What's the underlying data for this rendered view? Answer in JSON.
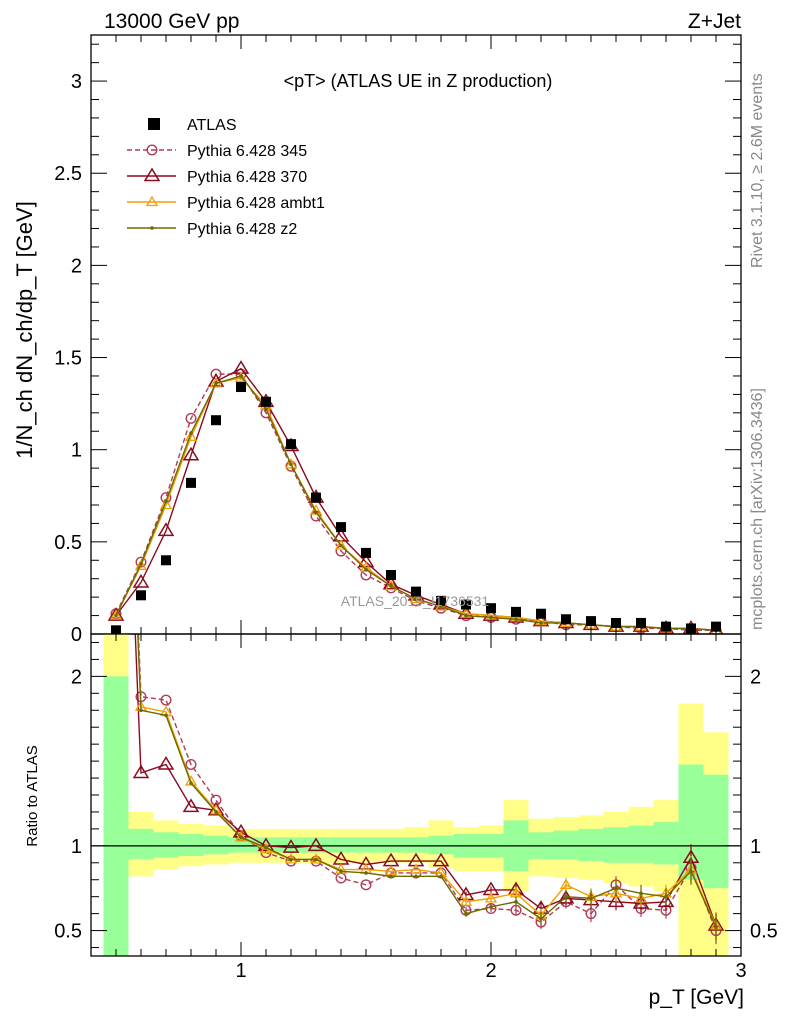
{
  "header": {
    "left": "13000 GeV pp",
    "right": "Z+Jet"
  },
  "side": {
    "rivet": "Rivet 3.1.10, ≥ 2.6M events",
    "mcplots": "mcplots.cern.ch [arXiv:1306.3436]"
  },
  "watermark": "ATLAS_2019_I1736531",
  "chart_data": {
    "type": "scatter",
    "title": "<pT> (ATLAS UE in Z production)",
    "xlabel": "p_T [GeV]",
    "ylabel": "1/N_ch dN_ch/dp_T [GeV]",
    "ratio_ylabel": "Ratio to ATLAS",
    "xlim": [
      0.4,
      3.0
    ],
    "ylim": [
      0,
      3.25
    ],
    "ratio_ylim": [
      0.35,
      2.25
    ],
    "x_ticks": [
      "1",
      "2",
      "3"
    ],
    "y_ticks": [
      "0",
      "0.5",
      "1",
      "1.5",
      "2",
      "2.5",
      "3"
    ],
    "ratio_y_ticks": [
      "0.5",
      "1",
      "2"
    ],
    "x": [
      0.5,
      0.6,
      0.7,
      0.8,
      0.9,
      1.0,
      1.1,
      1.2,
      1.3,
      1.4,
      1.5,
      1.6,
      1.7,
      1.8,
      1.9,
      2.0,
      2.1,
      2.2,
      2.3,
      2.4,
      2.5,
      2.6,
      2.7,
      2.8,
      2.9
    ],
    "bins": [
      0.45,
      0.55,
      0.65,
      0.75,
      0.85,
      0.95,
      1.05,
      1.15,
      1.25,
      1.35,
      1.45,
      1.55,
      1.65,
      1.75,
      1.85,
      1.95,
      2.05,
      2.15,
      2.25,
      2.35,
      2.45,
      2.55,
      2.65,
      2.75,
      2.85,
      2.95
    ],
    "data": {
      "name": "ATLAS",
      "color": "#000000",
      "values": [
        0.02,
        0.21,
        0.4,
        0.82,
        1.16,
        1.34,
        1.26,
        1.03,
        0.74,
        0.58,
        0.44,
        0.32,
        0.23,
        0.18,
        0.16,
        0.14,
        0.12,
        0.11,
        0.08,
        0.07,
        0.06,
        0.06,
        0.04,
        0.03,
        0.04
      ]
    },
    "band_stat": {
      "color": "#99ff99",
      "lo": [
        0.35,
        0.92,
        0.93,
        0.94,
        0.95,
        0.96,
        0.96,
        0.96,
        0.96,
        0.96,
        0.96,
        0.96,
        0.96,
        0.95,
        0.93,
        0.93,
        0.85,
        0.92,
        0.92,
        0.91,
        0.9,
        0.9,
        0.89,
        0.8,
        0.75
      ],
      "hi": [
        2.0,
        1.1,
        1.08,
        1.07,
        1.06,
        1.05,
        1.05,
        1.05,
        1.05,
        1.05,
        1.05,
        1.05,
        1.05,
        1.06,
        1.07,
        1.07,
        1.15,
        1.08,
        1.09,
        1.1,
        1.11,
        1.12,
        1.14,
        1.48,
        1.42
      ]
    },
    "band_total": {
      "color": "#ffff88",
      "lo": [
        0.35,
        0.82,
        0.86,
        0.88,
        0.89,
        0.9,
        0.9,
        0.9,
        0.9,
        0.9,
        0.9,
        0.9,
        0.9,
        0.87,
        0.85,
        0.85,
        0.73,
        0.82,
        0.81,
        0.8,
        0.78,
        0.76,
        0.73,
        0.35,
        0.35
      ],
      "hi": [
        2.25,
        1.2,
        1.15,
        1.13,
        1.12,
        1.1,
        1.1,
        1.1,
        1.1,
        1.1,
        1.1,
        1.1,
        1.11,
        1.15,
        1.11,
        1.12,
        1.27,
        1.16,
        1.17,
        1.18,
        1.2,
        1.23,
        1.27,
        1.84,
        1.67
      ]
    },
    "series": [
      {
        "name": "Pythia 6.428 345",
        "color": "#b03c56",
        "marker": "circle",
        "dashed": true,
        "values": [
          0.11,
          0.39,
          0.74,
          1.17,
          1.41,
          1.41,
          1.2,
          0.91,
          0.64,
          0.45,
          0.32,
          0.25,
          0.18,
          0.14,
          0.1,
          0.09,
          0.08,
          0.07,
          0.05,
          0.05,
          0.04,
          0.03,
          0.03,
          0.02,
          0.02
        ],
        "ratio": [
          5.5,
          1.88,
          1.86,
          1.48,
          1.27,
          1.06,
          0.96,
          0.91,
          0.91,
          0.81,
          0.77,
          0.84,
          0.84,
          0.84,
          0.62,
          0.63,
          0.62,
          0.55,
          0.67,
          0.6,
          0.77,
          0.63,
          0.62,
          0.87,
          0.5
        ],
        "err": [
          0,
          0,
          0,
          0,
          0,
          0,
          0,
          0,
          0,
          0,
          0,
          0,
          0,
          0,
          0.02,
          0.02,
          0.03,
          0.04,
          0.04,
          0.05,
          0.05,
          0.05,
          0.05,
          0.08,
          0.08
        ]
      },
      {
        "name": "Pythia 6.428 370",
        "color": "#8b0a1e",
        "marker": "triangle",
        "dashed": false,
        "values": [
          0.1,
          0.28,
          0.56,
          0.97,
          1.37,
          1.44,
          1.26,
          1.02,
          0.74,
          0.53,
          0.39,
          0.27,
          0.21,
          0.16,
          0.11,
          0.1,
          0.09,
          0.07,
          0.06,
          0.05,
          0.04,
          0.04,
          0.03,
          0.03,
          0.02
        ],
        "ratio": [
          5.0,
          1.43,
          1.48,
          1.23,
          1.21,
          1.08,
          1.0,
          0.99,
          1.0,
          0.92,
          0.89,
          0.91,
          0.91,
          0.91,
          0.71,
          0.74,
          0.74,
          0.63,
          0.69,
          0.68,
          0.67,
          0.66,
          0.67,
          0.93,
          0.53
        ],
        "err": [
          0,
          0,
          0,
          0,
          0,
          0,
          0,
          0,
          0,
          0,
          0,
          0,
          0,
          0,
          0.02,
          0.02,
          0.03,
          0.04,
          0.04,
          0.05,
          0.05,
          0.05,
          0.05,
          0.08,
          0.08
        ]
      },
      {
        "name": "Pythia 6.428 ambt1",
        "color": "#f0a000",
        "marker": "triangle-small",
        "dashed": false,
        "values": [
          0.1,
          0.37,
          0.7,
          1.07,
          1.36,
          1.39,
          1.24,
          0.92,
          0.67,
          0.48,
          0.36,
          0.26,
          0.19,
          0.15,
          0.11,
          0.1,
          0.09,
          0.07,
          0.06,
          0.05,
          0.04,
          0.04,
          0.03,
          0.03,
          0.02
        ],
        "ratio": [
          5.3,
          1.82,
          1.79,
          1.38,
          1.21,
          1.05,
          0.98,
          0.92,
          0.92,
          0.86,
          0.86,
          0.85,
          0.86,
          0.84,
          0.67,
          0.69,
          0.72,
          0.59,
          0.77,
          0.7,
          0.72,
          0.69,
          0.72,
          0.86,
          0.53
        ],
        "err": [
          0,
          0,
          0,
          0,
          0,
          0,
          0,
          0,
          0,
          0,
          0,
          0,
          0,
          0,
          0.02,
          0.02,
          0.03,
          0.04,
          0.04,
          0.05,
          0.05,
          0.05,
          0.05,
          0.08,
          0.08
        ]
      },
      {
        "name": "Pythia 6.428 z2",
        "color": "#6b6b00",
        "marker": "dot",
        "dashed": false,
        "values": [
          0.1,
          0.38,
          0.72,
          1.09,
          1.36,
          1.4,
          1.22,
          0.92,
          0.66,
          0.48,
          0.35,
          0.26,
          0.19,
          0.15,
          0.1,
          0.09,
          0.08,
          0.06,
          0.06,
          0.05,
          0.04,
          0.04,
          0.03,
          0.03,
          0.02
        ],
        "ratio": [
          5.3,
          1.8,
          1.77,
          1.37,
          1.2,
          1.05,
          0.99,
          0.92,
          0.92,
          0.85,
          0.84,
          0.82,
          0.82,
          0.82,
          0.6,
          0.64,
          0.67,
          0.57,
          0.7,
          0.69,
          0.75,
          0.72,
          0.7,
          0.85,
          0.52
        ],
        "err": [
          0,
          0,
          0,
          0,
          0,
          0,
          0,
          0,
          0,
          0,
          0,
          0,
          0,
          0,
          0.02,
          0.02,
          0.03,
          0.04,
          0.04,
          0.05,
          0.05,
          0.05,
          0.05,
          0.08,
          0.08
        ]
      }
    ]
  }
}
